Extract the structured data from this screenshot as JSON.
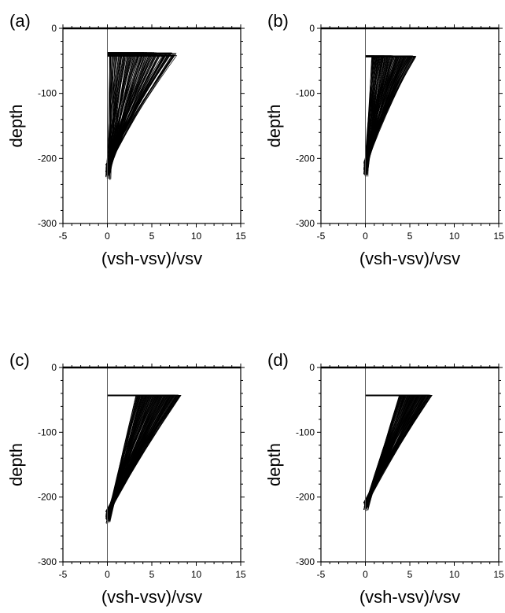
{
  "chart_data": [
    {
      "type": "line",
      "panel_label": "(a)",
      "xlabel": "(vsh-vsv)/vsv",
      "ylabel": "depth",
      "xlim": [
        -5,
        15
      ],
      "ylim": [
        -300,
        0
      ],
      "xticks": [
        -5,
        0,
        5,
        10,
        15
      ],
      "yticks": [
        -300,
        -200,
        -100,
        0
      ],
      "reference_line_x": 0,
      "ensemble": {
        "count": 130,
        "top_depth": -40,
        "top_depth_jitter": 6,
        "top_value_min": 0.2,
        "top_value_max": 7.8,
        "bottom_depth_min": -210,
        "bottom_depth_max": -235,
        "bottom_value_min": -0.2,
        "bottom_value_max": 0.4,
        "curvature": 0.08
      }
    },
    {
      "type": "line",
      "panel_label": "(b)",
      "xlabel": "(vsh-vsv)/vsv",
      "ylabel": "depth",
      "xlim": [
        -5,
        15
      ],
      "ylim": [
        -300,
        0
      ],
      "xticks": [
        -5,
        0,
        5,
        10,
        15
      ],
      "yticks": [
        -300,
        -200,
        -100,
        0
      ],
      "reference_line_x": 0,
      "ensemble": {
        "count": 130,
        "top_depth": -43,
        "top_depth_jitter": 2,
        "top_value_min": 0.7,
        "top_value_max": 5.7,
        "bottom_depth_min": -205,
        "bottom_depth_max": -230,
        "bottom_value_min": -0.2,
        "bottom_value_max": 0.3,
        "curvature": 0.1
      }
    },
    {
      "type": "line",
      "panel_label": "(c)",
      "xlabel": "(vsh-vsv)/vsv",
      "ylabel": "depth",
      "xlim": [
        -5,
        15
      ],
      "ylim": [
        -300,
        0
      ],
      "xticks": [
        -5,
        0,
        5,
        10,
        15
      ],
      "yticks": [
        -300,
        -200,
        -100,
        0
      ],
      "reference_line_x": 0,
      "ensemble": {
        "count": 130,
        "top_depth": -43,
        "top_depth_jitter": 1,
        "top_value_min": 3.2,
        "top_value_max": 8.3,
        "bottom_depth_min": -222,
        "bottom_depth_max": -243,
        "bottom_value_min": -0.2,
        "bottom_value_max": 0.3,
        "curvature": 0.05
      }
    },
    {
      "type": "line",
      "panel_label": "(d)",
      "xlabel": "(vsh-vsv)/vsv",
      "ylabel": "depth",
      "xlim": [
        -5,
        15
      ],
      "ylim": [
        -300,
        0
      ],
      "xticks": [
        -5,
        0,
        5,
        10,
        15
      ],
      "yticks": [
        -300,
        -200,
        -100,
        0
      ],
      "reference_line_x": 0,
      "ensemble": {
        "count": 110,
        "top_depth": -43,
        "top_depth_jitter": 1,
        "top_value_min": 3.8,
        "top_value_max": 7.5,
        "bottom_depth_min": -208,
        "bottom_depth_max": -222,
        "bottom_value_min": -0.2,
        "bottom_value_max": 0.3,
        "curvature": 0.05
      }
    }
  ]
}
